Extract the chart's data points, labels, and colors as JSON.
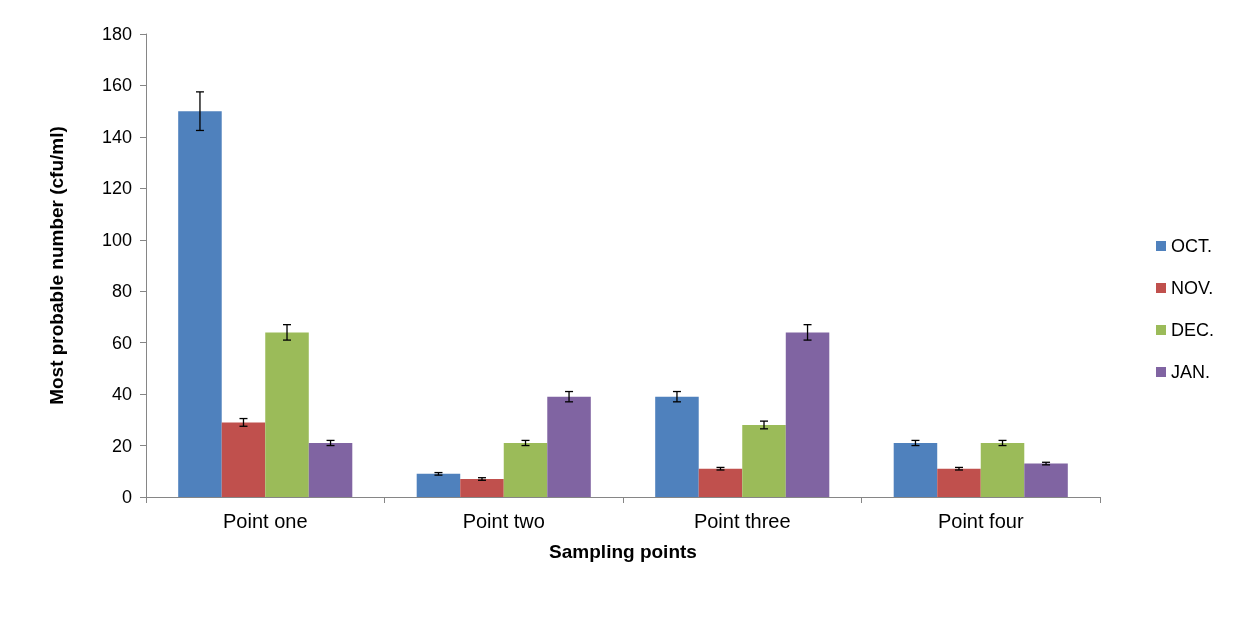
{
  "chart_data": {
    "type": "bar",
    "xlabel": "Sampling points",
    "ylabel": "Most probable number (cfu/ml)",
    "categories": [
      "Point one",
      "Point two",
      "Point three",
      "Point four"
    ],
    "series": [
      {
        "name": "OCT.",
        "color": "#4f81bd",
        "values": [
          150,
          9,
          39,
          21
        ],
        "errors": [
          7.5,
          0.5,
          2,
          1
        ]
      },
      {
        "name": "NOV.",
        "color": "#c0504d",
        "values": [
          29,
          7,
          11,
          11
        ],
        "errors": [
          1.5,
          0.5,
          0.5,
          0.5
        ]
      },
      {
        "name": "DEC.",
        "color": "#9bbb59",
        "values": [
          64,
          21,
          28,
          21
        ],
        "errors": [
          3,
          1,
          1.5,
          1
        ]
      },
      {
        "name": "JAN.",
        "color": "#8064a2",
        "values": [
          21,
          39,
          64,
          13
        ],
        "errors": [
          1,
          2,
          3,
          0.5
        ]
      }
    ],
    "ylim": [
      0,
      180
    ],
    "yticks": [
      0,
      20,
      40,
      60,
      80,
      100,
      120,
      140,
      160,
      180
    ],
    "grid": false,
    "legend": "right"
  }
}
